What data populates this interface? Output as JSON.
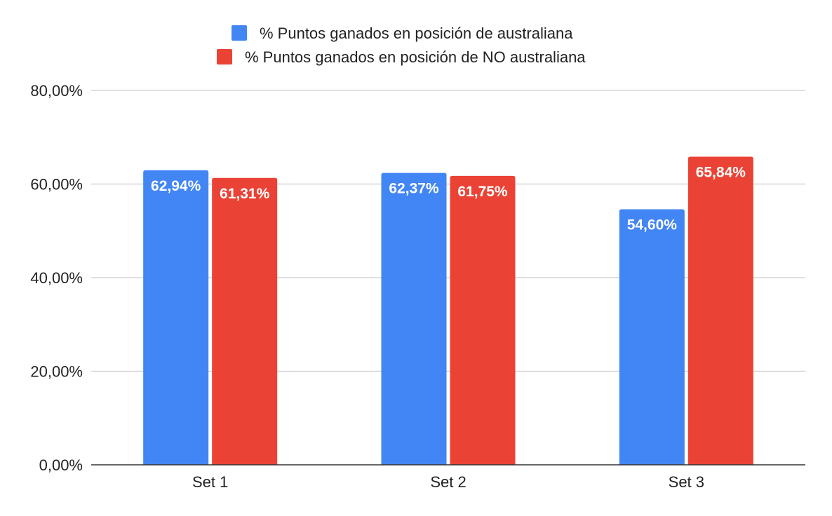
{
  "chart_data": {
    "type": "bar",
    "title": "",
    "xlabel": "",
    "ylabel": "",
    "categories": [
      "Set 1",
      "Set 2",
      "Set 3"
    ],
    "series": [
      {
        "name": "% Puntos ganados en posición de australiana",
        "color": "#4285f4",
        "values": [
          62.94,
          62.37,
          54.6
        ],
        "labels": [
          "62,94%",
          "62,37%",
          "54,60%"
        ]
      },
      {
        "name": "% Puntos ganados en posición de NO australiana",
        "color": "#ea4335",
        "values": [
          61.31,
          61.75,
          65.84
        ],
        "labels": [
          "61,31%",
          "61,75%",
          "65,84%"
        ]
      }
    ],
    "ylim": [
      0,
      80
    ],
    "yticks": [
      0,
      20,
      40,
      60,
      80
    ],
    "ytick_labels": [
      "0,00%",
      "20,00%",
      "40,00%",
      "60,00%",
      "80,00%"
    ],
    "grid": true,
    "legend_position": "top-center"
  }
}
